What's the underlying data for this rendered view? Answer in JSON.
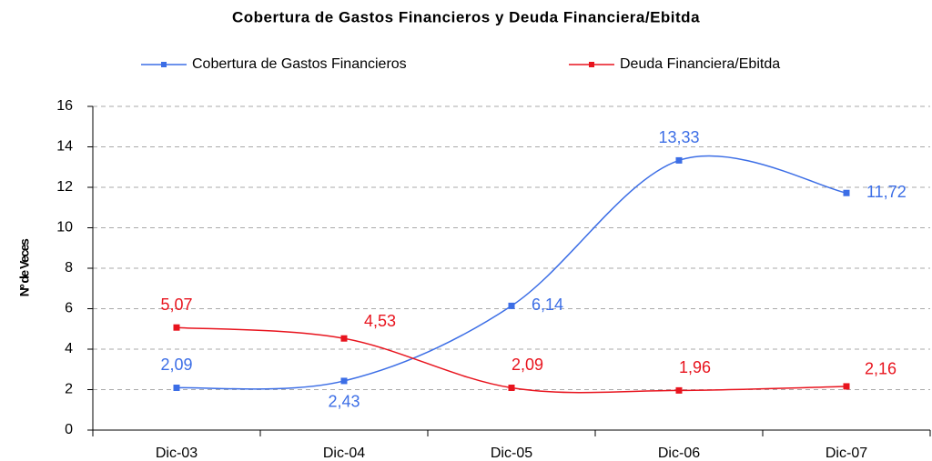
{
  "chart_data": {
    "type": "line",
    "title": "Cobertura de Gastos Financieros y Deuda Financiera/Ebitda",
    "y_label": "Nº de Veces",
    "categories": [
      "Dic-03",
      "Dic-04",
      "Dic-05",
      "Dic-06",
      "Dic-07"
    ],
    "series": [
      {
        "name": "Cobertura de Gastos Financieros",
        "color": "#3c6ee6",
        "values": [
          2.09,
          2.43,
          6.14,
          13.33,
          11.72
        ],
        "value_labels": [
          "2,09",
          "2,43",
          "6,14",
          "13,33",
          "11,72"
        ]
      },
      {
        "name": "Deuda Financiera/Ebitda",
        "color": "#e8141e",
        "values": [
          5.07,
          4.53,
          2.09,
          1.96,
          2.16
        ],
        "value_labels": [
          "5,07",
          "4,53",
          "2,09",
          "1,96",
          "2,16"
        ]
      }
    ],
    "ylim": [
      0,
      16
    ],
    "yticks": [
      0,
      2,
      4,
      6,
      8,
      10,
      12,
      14,
      16
    ],
    "grid": true,
    "smooth": true,
    "legend": "top"
  }
}
